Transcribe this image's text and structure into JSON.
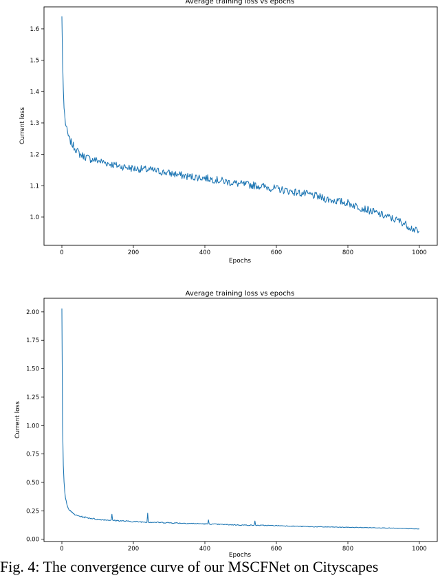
{
  "chart_data": [
    {
      "type": "line",
      "title": "Average training loss vs epochs",
      "xlabel": "Epochs",
      "ylabel": "Current loss",
      "xlim": [
        -50,
        1050
      ],
      "ylim": [
        0.91,
        1.67
      ],
      "xticks": [
        0,
        200,
        400,
        600,
        800,
        1000
      ],
      "yticks": [
        1.0,
        1.1,
        1.2,
        1.3,
        1.4,
        1.5,
        1.6
      ],
      "ytick_labels": [
        "1.0",
        "1.1",
        "1.2",
        "1.3",
        "1.4",
        "1.5",
        "1.6"
      ],
      "grid": false,
      "color": "#1f77b4",
      "series": [
        {
          "x": [
            0,
            2,
            5,
            10,
            15,
            20,
            30,
            40,
            50,
            60,
            80,
            100,
            150,
            200,
            250,
            300,
            350,
            400,
            450,
            500,
            550,
            600,
            650,
            700,
            750,
            800,
            850,
            900,
            950,
            1000
          ],
          "y": [
            1.64,
            1.5,
            1.36,
            1.3,
            1.27,
            1.25,
            1.23,
            1.215,
            1.2,
            1.195,
            1.185,
            1.18,
            1.165,
            1.155,
            1.15,
            1.14,
            1.13,
            1.125,
            1.115,
            1.105,
            1.1,
            1.09,
            1.08,
            1.07,
            1.055,
            1.045,
            1.025,
            1.005,
            0.985,
            0.95
          ]
        }
      ]
    },
    {
      "type": "line",
      "title": "Average training loss vs epochs",
      "xlabel": "Epochs",
      "ylabel": "Current loss",
      "xlim": [
        -50,
        1050
      ],
      "ylim": [
        -0.02,
        2.12
      ],
      "xticks": [
        0,
        200,
        400,
        600,
        800,
        1000
      ],
      "yticks": [
        0.0,
        0.25,
        0.5,
        0.75,
        1.0,
        1.25,
        1.5,
        1.75,
        2.0
      ],
      "ytick_labels": [
        "0.00",
        "0.25",
        "0.50",
        "0.75",
        "1.00",
        "1.25",
        "1.50",
        "1.75",
        "2.00"
      ],
      "grid": false,
      "color": "#1f77b4",
      "series": [
        {
          "x": [
            0,
            1,
            2,
            3,
            5,
            8,
            10,
            15,
            20,
            30,
            40,
            60,
            80,
            100,
            150,
            200,
            300,
            400,
            500,
            600,
            700,
            800,
            900,
            1000
          ],
          "y": [
            2.03,
            1.5,
            1.0,
            0.75,
            0.55,
            0.42,
            0.36,
            0.3,
            0.26,
            0.23,
            0.21,
            0.195,
            0.185,
            0.175,
            0.165,
            0.155,
            0.145,
            0.135,
            0.125,
            0.12,
            0.11,
            0.105,
            0.1,
            0.09
          ]
        }
      ],
      "spikes": [
        {
          "x": 140,
          "y": 0.22
        },
        {
          "x": 240,
          "y": 0.23
        },
        {
          "x": 385,
          "y": 0.22
        },
        {
          "x": 410,
          "y": 0.17
        },
        {
          "x": 540,
          "y": 0.16
        },
        {
          "x": 655,
          "y": 0.15
        },
        {
          "x": 715,
          "y": 0.14
        }
      ]
    }
  ],
  "caption": "Fig. 4: The convergence curve of our MSCFNet on Cityscapes"
}
